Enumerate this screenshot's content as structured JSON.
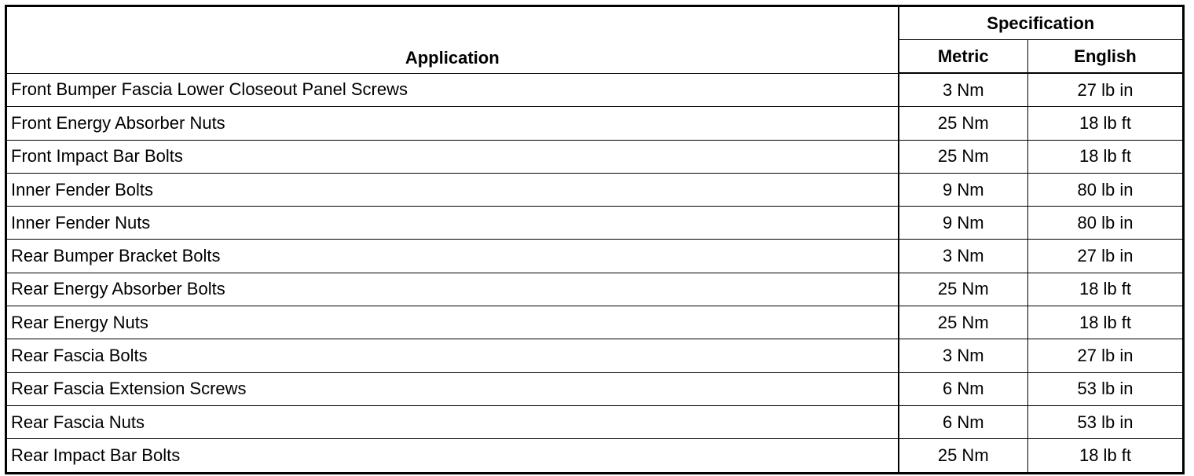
{
  "table": {
    "headers": {
      "application": "Application",
      "specification": "Specification",
      "metric": "Metric",
      "english": "English"
    },
    "rows": [
      {
        "application": "Front Bumper Fascia Lower Closeout Panel Screws",
        "metric": "3 Nm",
        "english": "27 lb in"
      },
      {
        "application": "Front Energy Absorber Nuts",
        "metric": "25 Nm",
        "english": "18 lb ft"
      },
      {
        "application": "Front Impact Bar Bolts",
        "metric": "25 Nm",
        "english": "18 lb ft"
      },
      {
        "application": "Inner Fender Bolts",
        "metric": "9 Nm",
        "english": "80 lb in"
      },
      {
        "application": "Inner Fender Nuts",
        "metric": "9 Nm",
        "english": "80 lb in"
      },
      {
        "application": "Rear Bumper Bracket Bolts",
        "metric": "3 Nm",
        "english": "27 lb in"
      },
      {
        "application": "Rear Energy Absorber Bolts",
        "metric": "25 Nm",
        "english": "18 lb ft"
      },
      {
        "application": "Rear Energy Nuts",
        "metric": "25 Nm",
        "english": "18 lb ft"
      },
      {
        "application": "Rear Fascia Bolts",
        "metric": "3 Nm",
        "english": "27 lb in"
      },
      {
        "application": "Rear Fascia Extension Screws",
        "metric": "6 Nm",
        "english": "53 lb in"
      },
      {
        "application": "Rear Fascia Nuts",
        "metric": "6 Nm",
        "english": "53 lb in"
      },
      {
        "application": "Rear Impact Bar Bolts",
        "metric": "25 Nm",
        "english": "18 lb ft"
      }
    ]
  }
}
